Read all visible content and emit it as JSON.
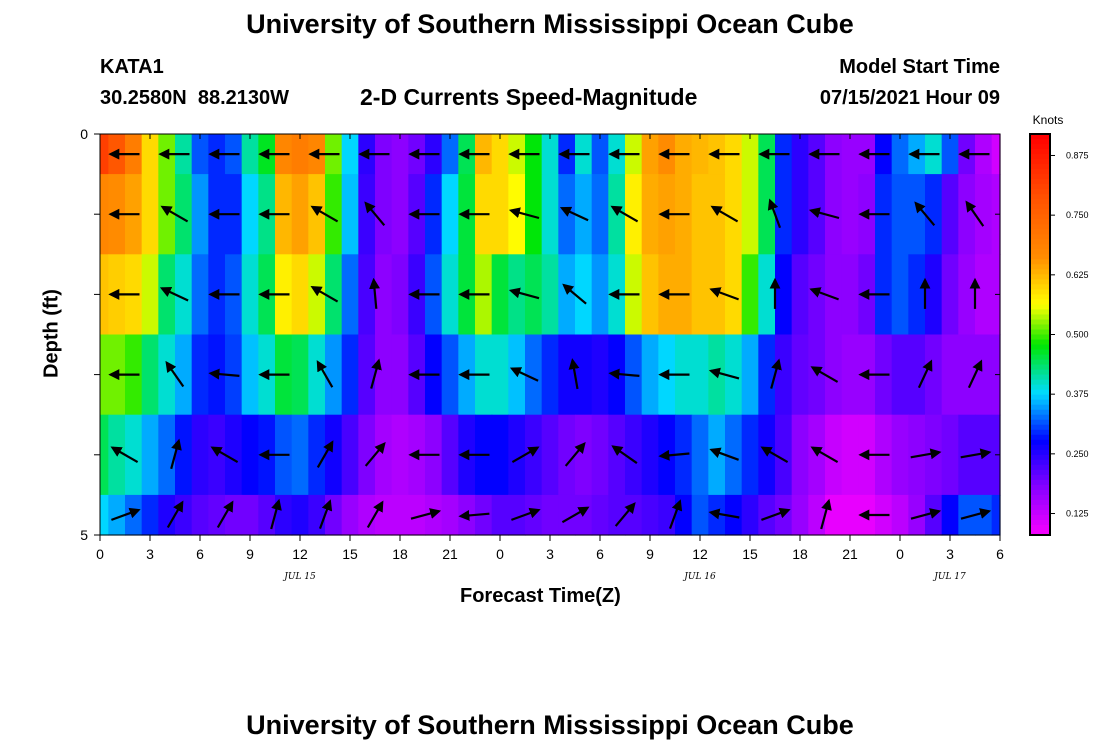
{
  "page_title": "University of Southern Mississippi Ocean Cube",
  "footer_title": "University of Southern Mississippi Ocean Cube",
  "station": {
    "id": "KATA1",
    "coordinates": "30.2580N  88.2130W"
  },
  "model_start": {
    "label": "Model Start Time",
    "value": "07/15/2021 Hour 09"
  },
  "chart_data": {
    "type": "heatmap",
    "title": "2-D Currents Speed-Magnitude",
    "xlabel": "Forecast Time(Z)",
    "ylabel": "Depth (ft)",
    "x_range_hours": [
      0,
      54
    ],
    "y_range": [
      0,
      5
    ],
    "x_tick_labels": [
      "0",
      "3",
      "6",
      "9",
      "12",
      "15",
      "18",
      "21",
      "0",
      "3",
      "6",
      "9",
      "12",
      "15",
      "18",
      "21",
      "0",
      "3",
      "6"
    ],
    "y_tick_labels": [
      "0",
      "5"
    ],
    "date_labels": [
      {
        "text": "JUL 15",
        "hour": 12
      },
      {
        "text": "JUL 16",
        "hour": 36
      },
      {
        "text": "JUL 17",
        "hour": 51
      }
    ],
    "colorbar": {
      "label": "Knots",
      "ticks": [
        "0.875",
        "0.750",
        "0.625",
        "0.500",
        "0.375",
        "0.250",
        "0.125"
      ],
      "tick_values": [
        0.875,
        0.75,
        0.625,
        0.5,
        0.375,
        0.25,
        0.125
      ],
      "range": [
        0.08,
        0.92
      ]
    },
    "depth_rows": [
      0.25,
      1.0,
      2.0,
      3.0,
      4.0,
      4.75
    ],
    "speed_hours": [
      0,
      1,
      2,
      3,
      4,
      5,
      6,
      7,
      8,
      9,
      10,
      11,
      12,
      13,
      14,
      15,
      16,
      17,
      18,
      19,
      20,
      21,
      22,
      23,
      24,
      25,
      26,
      27,
      28,
      29,
      30,
      31,
      32,
      33,
      34,
      35,
      36,
      37,
      38,
      39,
      40,
      41,
      42,
      43,
      44,
      45,
      46,
      47,
      48,
      49,
      50,
      51,
      52,
      53,
      54
    ],
    "speed_knots": [
      [
        0.82,
        0.78,
        0.7,
        0.6,
        0.52,
        0.42,
        0.32,
        0.3,
        0.32,
        0.42,
        0.47,
        0.68,
        0.7,
        0.68,
        0.52,
        0.38,
        0.25,
        0.19,
        0.18,
        0.2,
        0.25,
        0.33,
        0.45,
        0.63,
        0.6,
        0.55,
        0.48,
        0.4,
        0.3,
        0.4,
        0.32,
        0.4,
        0.55,
        0.65,
        0.67,
        0.64,
        0.63,
        0.62,
        0.6,
        0.55,
        0.45,
        0.3,
        0.25,
        0.22,
        0.18,
        0.17,
        0.17,
        0.28,
        0.33,
        0.36,
        0.4,
        0.32,
        0.2,
        0.15,
        0.12
      ],
      [
        0.68,
        0.67,
        0.65,
        0.6,
        0.52,
        0.44,
        0.35,
        0.3,
        0.3,
        0.38,
        0.43,
        0.63,
        0.65,
        0.62,
        0.5,
        0.37,
        0.24,
        0.19,
        0.18,
        0.22,
        0.3,
        0.38,
        0.46,
        0.6,
        0.6,
        0.57,
        0.48,
        0.4,
        0.33,
        0.36,
        0.33,
        0.42,
        0.58,
        0.64,
        0.65,
        0.64,
        0.62,
        0.62,
        0.6,
        0.55,
        0.45,
        0.3,
        0.25,
        0.22,
        0.18,
        0.17,
        0.18,
        0.3,
        0.32,
        0.32,
        0.3,
        0.22,
        0.18,
        0.16,
        0.15
      ],
      [
        0.62,
        0.61,
        0.6,
        0.55,
        0.44,
        0.4,
        0.33,
        0.3,
        0.32,
        0.4,
        0.45,
        0.58,
        0.6,
        0.55,
        0.44,
        0.33,
        0.23,
        0.18,
        0.19,
        0.24,
        0.32,
        0.4,
        0.46,
        0.54,
        0.46,
        0.43,
        0.45,
        0.42,
        0.36,
        0.38,
        0.35,
        0.4,
        0.55,
        0.62,
        0.64,
        0.64,
        0.62,
        0.62,
        0.6,
        0.5,
        0.4,
        0.28,
        0.22,
        0.2,
        0.18,
        0.18,
        0.2,
        0.3,
        0.32,
        0.3,
        0.26,
        0.2,
        0.17,
        0.15,
        0.15
      ],
      [
        0.52,
        0.52,
        0.5,
        0.44,
        0.4,
        0.36,
        0.3,
        0.29,
        0.31,
        0.37,
        0.4,
        0.46,
        0.45,
        0.4,
        0.35,
        0.3,
        0.22,
        0.18,
        0.18,
        0.22,
        0.28,
        0.32,
        0.36,
        0.4,
        0.4,
        0.37,
        0.33,
        0.3,
        0.27,
        0.27,
        0.26,
        0.28,
        0.32,
        0.36,
        0.38,
        0.4,
        0.4,
        0.42,
        0.4,
        0.36,
        0.3,
        0.24,
        0.21,
        0.2,
        0.18,
        0.17,
        0.17,
        0.2,
        0.22,
        0.22,
        0.2,
        0.18,
        0.18,
        0.18,
        0.18
      ],
      [
        0.45,
        0.42,
        0.4,
        0.36,
        0.33,
        0.29,
        0.25,
        0.24,
        0.26,
        0.28,
        0.29,
        0.32,
        0.33,
        0.3,
        0.27,
        0.23,
        0.19,
        0.16,
        0.15,
        0.16,
        0.18,
        0.22,
        0.26,
        0.28,
        0.28,
        0.26,
        0.24,
        0.22,
        0.2,
        0.19,
        0.2,
        0.22,
        0.24,
        0.26,
        0.28,
        0.3,
        0.33,
        0.36,
        0.33,
        0.3,
        0.27,
        0.23,
        0.18,
        0.16,
        0.13,
        0.12,
        0.12,
        0.15,
        0.17,
        0.18,
        0.19,
        0.2,
        0.22,
        0.22,
        0.22
      ],
      [
        0.38,
        0.36,
        0.33,
        0.3,
        0.26,
        0.24,
        0.22,
        0.21,
        0.2,
        0.2,
        0.22,
        0.25,
        0.26,
        0.24,
        0.2,
        0.17,
        0.15,
        0.14,
        0.14,
        0.14,
        0.15,
        0.16,
        0.18,
        0.2,
        0.22,
        0.22,
        0.21,
        0.2,
        0.2,
        0.2,
        0.21,
        0.22,
        0.22,
        0.23,
        0.24,
        0.28,
        0.32,
        0.3,
        0.28,
        0.25,
        0.22,
        0.2,
        0.17,
        0.14,
        0.1,
        0.1,
        0.1,
        0.12,
        0.14,
        0.17,
        0.22,
        0.28,
        0.32,
        0.32,
        0.3
      ]
    ],
    "vector_hours": [
      1.5,
      4.5,
      7.5,
      10.5,
      13.5,
      16.5,
      19.5,
      22.5,
      25.5,
      28.5,
      31.5,
      34.5,
      37.5,
      40.5,
      43.5,
      46.5,
      49.5,
      52.5
    ],
    "vector_direction_deg": [
      [
        270,
        270,
        270,
        270,
        270,
        270,
        270,
        270,
        270,
        270,
        270,
        270,
        270,
        270,
        270,
        270,
        270,
        270
      ],
      [
        270,
        300,
        270,
        270,
        300,
        320,
        270,
        270,
        285,
        295,
        300,
        270,
        300,
        340,
        285,
        270,
        320,
        325
      ],
      [
        270,
        295,
        270,
        270,
        300,
        355,
        270,
        270,
        285,
        310,
        270,
        270,
        290,
        0,
        290,
        270,
        0,
        0
      ],
      [
        270,
        325,
        275,
        270,
        330,
        15,
        270,
        270,
        295,
        350,
        275,
        270,
        285,
        15,
        300,
        270,
        25,
        25
      ],
      [
        300,
        15,
        300,
        270,
        30,
        40,
        270,
        270,
        60,
        40,
        305,
        265,
        290,
        300,
        300,
        270,
        80,
        80
      ],
      [
        70,
        30,
        30,
        15,
        20,
        30,
        75,
        265,
        70,
        60,
        40,
        20,
        280,
        70,
        15,
        270,
        75,
        75
      ]
    ]
  }
}
